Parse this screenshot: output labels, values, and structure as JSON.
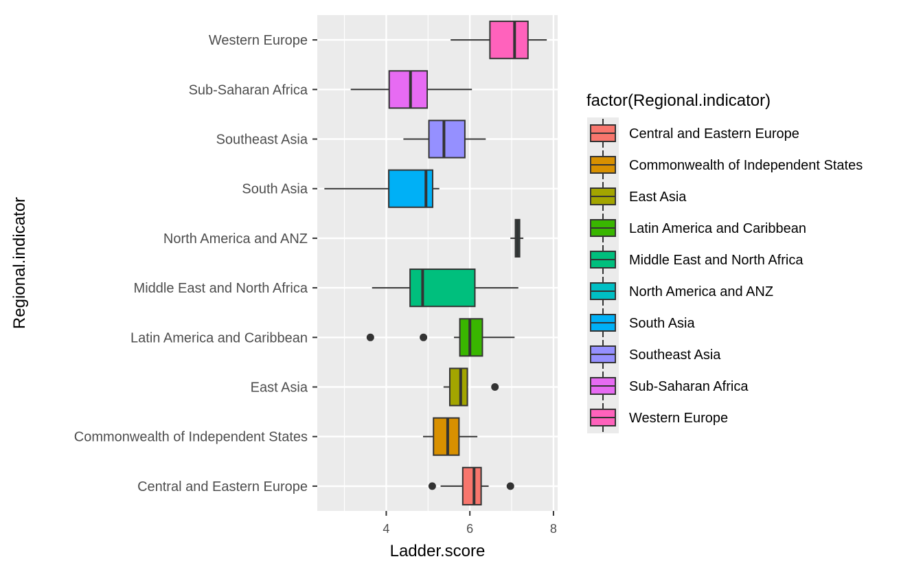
{
  "chart_data": {
    "type": "boxplot",
    "orientation": "horizontal",
    "xlabel": "Ladder.score",
    "ylabel": "Regional.indicator",
    "xlim": [
      2.35,
      8.1
    ],
    "xticks": [
      4,
      6,
      8
    ],
    "x_minor_ticks": [
      3,
      5,
      7
    ],
    "grid": true,
    "legend_title": "factor(Regional.indicator)",
    "legend_position": "right",
    "categories": [
      "Central and Eastern Europe",
      "Commonwealth of Independent States",
      "East Asia",
      "Latin America and Caribbean",
      "Middle East and North Africa",
      "North America and ANZ",
      "South Asia",
      "Southeast Asia",
      "Sub-Saharan Africa",
      "Western Europe"
    ],
    "colors": [
      "#F8766D",
      "#D89000",
      "#A3A500",
      "#39B600",
      "#00BF7D",
      "#00BFC4",
      "#00B0F6",
      "#9590FF",
      "#E76BF3",
      "#FF62BC"
    ],
    "boxes": [
      {
        "min": 5.3,
        "q1": 5.83,
        "median": 6.1,
        "q3": 6.27,
        "max": 6.45,
        "outliers": [
          5.1,
          6.97
        ]
      },
      {
        "min": 4.88,
        "q1": 5.13,
        "median": 5.47,
        "q3": 5.74,
        "max": 6.18,
        "outliers": []
      },
      {
        "min": 5.37,
        "q1": 5.52,
        "median": 5.78,
        "q3": 5.94,
        "max": 5.94,
        "outliers": [
          6.6
        ]
      },
      {
        "min": 5.62,
        "q1": 5.76,
        "median": 6.0,
        "q3": 6.3,
        "max": 7.07,
        "outliers": [
          3.62,
          4.89
        ]
      },
      {
        "min": 3.66,
        "q1": 4.57,
        "median": 4.87,
        "q3": 6.12,
        "max": 7.16,
        "outliers": []
      },
      {
        "min": 6.97,
        "q1": 7.09,
        "median": 7.14,
        "q3": 7.19,
        "max": 7.28,
        "outliers": []
      },
      {
        "min": 2.52,
        "q1": 4.06,
        "median": 4.95,
        "q3": 5.11,
        "max": 5.27,
        "outliers": []
      },
      {
        "min": 4.41,
        "q1": 5.02,
        "median": 5.38,
        "q3": 5.88,
        "max": 6.38,
        "outliers": []
      },
      {
        "min": 3.15,
        "q1": 4.07,
        "median": 4.58,
        "q3": 4.98,
        "max": 6.05,
        "outliers": []
      },
      {
        "min": 5.54,
        "q1": 6.48,
        "median": 7.07,
        "q3": 7.39,
        "max": 7.84,
        "outliers": []
      }
    ]
  }
}
